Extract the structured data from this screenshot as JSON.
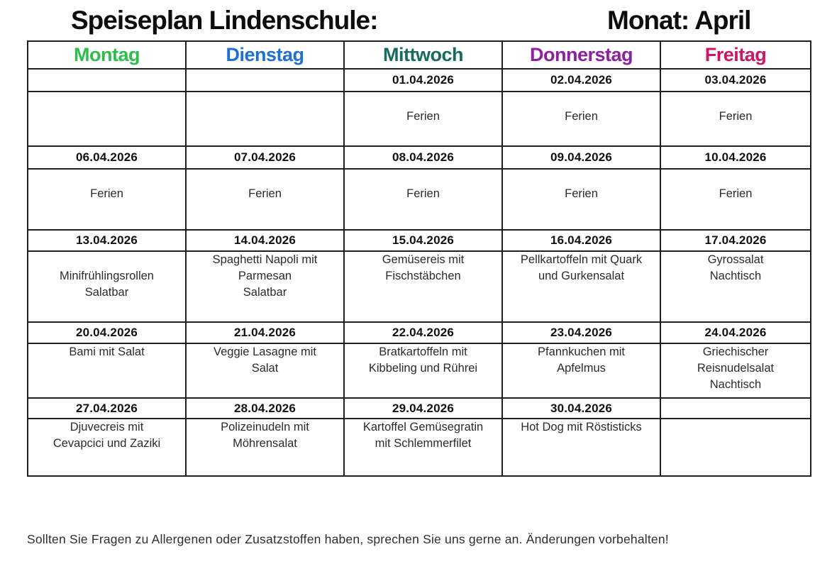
{
  "title": {
    "left": "Speiseplan Lindenschule:",
    "right": "Monat: April"
  },
  "days": [
    {
      "label": "Montag",
      "color": "#2dbe4a"
    },
    {
      "label": "Dienstag",
      "color": "#1e70d4"
    },
    {
      "label": "Mittwoch",
      "color": "#176b5e"
    },
    {
      "label": "Donnerstag",
      "color": "#8c1fa2"
    },
    {
      "label": "Freitag",
      "color": "#cb1668"
    }
  ],
  "weeks": [
    {
      "dates": [
        "",
        "",
        "01.04.2026",
        "02.04.2026",
        "03.04.2026"
      ],
      "meals": [
        [],
        [],
        [
          "",
          "Ferien"
        ],
        [
          "",
          "Ferien"
        ],
        [
          "",
          "Ferien"
        ]
      ]
    },
    {
      "dates": [
        "06.04.2026",
        "07.04.2026",
        "08.04.2026",
        "09.04.2026",
        "10.04.2026"
      ],
      "meals": [
        [
          "",
          "Ferien"
        ],
        [
          "",
          "Ferien"
        ],
        [
          "",
          "Ferien"
        ],
        [
          "",
          "Ferien"
        ],
        [
          "",
          "Ferien"
        ]
      ]
    },
    {
      "dates": [
        "13.04.2026",
        "14.04.2026",
        "15.04.2026",
        "16.04.2026",
        "17.04.2026"
      ],
      "meals": [
        [
          "",
          "Minifrühlingsrollen",
          "Salatbar"
        ],
        [
          "Spaghetti Napoli mit",
          "Parmesan",
          "Salatbar"
        ],
        [
          "Gemüsereis mit",
          "Fischstäbchen"
        ],
        [
          "Pellkartoffeln mit Quark",
          "und Gurkensalat"
        ],
        [
          "Gyrossalat",
          "Nachtisch"
        ]
      ]
    },
    {
      "dates": [
        "20.04.2026",
        "21.04.2026",
        "22.04.2026",
        "23.04.2026",
        "24.04.2026"
      ],
      "meals": [
        [
          "Bami mit Salat"
        ],
        [
          "Veggie Lasagne mit",
          "Salat"
        ],
        [
          "Bratkartoffeln mit",
          "Kibbeling und Rührei"
        ],
        [
          "Pfannkuchen mit",
          "Apfelmus"
        ],
        [
          "Griechischer",
          "Reisnudelsalat",
          "Nachtisch"
        ]
      ]
    },
    {
      "dates": [
        "27.04.2026",
        "28.04.2026",
        "29.04.2026",
        "30.04.2026",
        ""
      ],
      "meals": [
        [
          "Djuvecreis mit",
          "Cevapcici und Zaziki"
        ],
        [
          "Polizeinudeln mit",
          "Möhrensalat"
        ],
        [
          "Kartoffel Gemüsegratin",
          "mit Schlemmerfilet"
        ],
        [
          "Hot Dog mit Röstisticks"
        ],
        []
      ]
    }
  ],
  "footer": "Sollten Sie Fragen zu Allergenen oder Zusatzstoffen haben, sprechen Sie uns gerne an. Änderungen vorbehalten!"
}
